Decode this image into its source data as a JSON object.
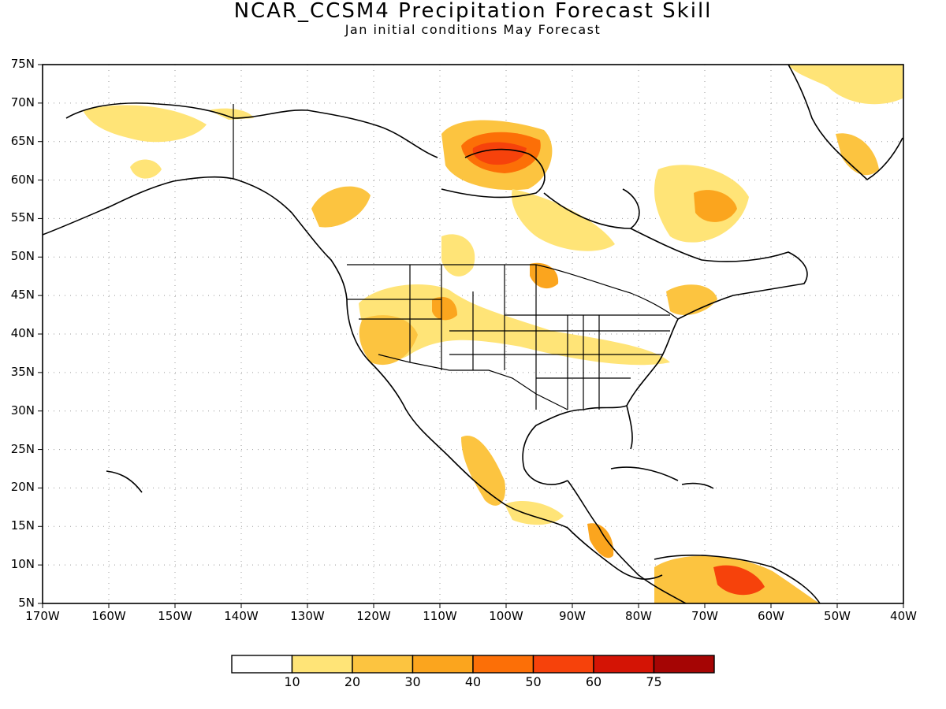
{
  "title": "NCAR_CCSM4 Precipitation Forecast Skill",
  "subtitle": "Jan initial conditions   May Forecast",
  "lat_labels": [
    "75N",
    "70N",
    "65N",
    "60N",
    "55N",
    "50N",
    "45N",
    "40N",
    "35N",
    "30N",
    "25N",
    "20N",
    "15N",
    "10N",
    "5N"
  ],
  "lon_labels": [
    "170W",
    "160W",
    "150W",
    "140W",
    "130W",
    "120W",
    "110W",
    "100W",
    "90W",
    "80W",
    "70W",
    "60W",
    "50W",
    "40W"
  ],
  "colorbar": {
    "colors": [
      "#ffffff",
      "#ffe477",
      "#fcc440",
      "#fba51e",
      "#fc6f07",
      "#f6420b",
      "#d41405",
      "#a50504"
    ],
    "labels": [
      "10",
      "20",
      "30",
      "40",
      "50",
      "60",
      "75"
    ]
  }
}
